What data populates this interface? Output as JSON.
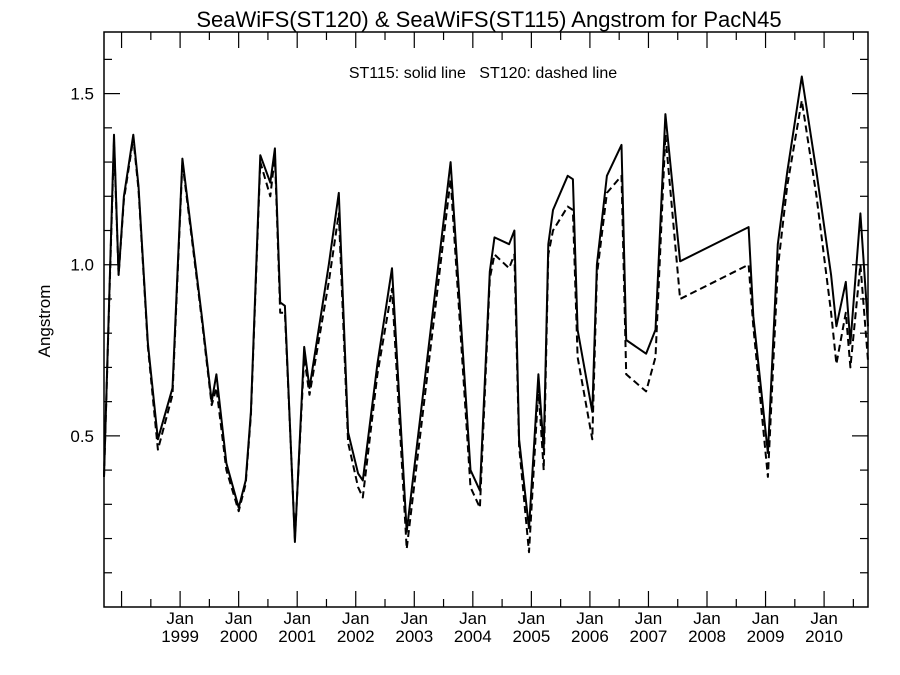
{
  "chart_data": {
    "type": "line",
    "title": "SeaWiFS(ST120) & SeaWiFS(ST115)  Angstrom for PacN45",
    "ylabel": "Angstrom",
    "xlabel": "",
    "annotation": "ST115: solid line   ST120: dashed line",
    "x_unit": "decimal year",
    "xlim": [
      1997.7,
      2010.75
    ],
    "ylim": [
      0.0,
      1.68
    ],
    "yticks": [
      0.5,
      1.0,
      1.5
    ],
    "x_tick_labels": [
      {
        "month": "Jan",
        "year": "1999",
        "x": 1999.0
      },
      {
        "month": "Jan",
        "year": "2000",
        "x": 2000.0
      },
      {
        "month": "Jan",
        "year": "2001",
        "x": 2001.0
      },
      {
        "month": "Jan",
        "year": "2002",
        "x": 2002.0
      },
      {
        "month": "Jan",
        "year": "2003",
        "x": 2003.0
      },
      {
        "month": "Jan",
        "year": "2004",
        "x": 2004.0
      },
      {
        "month": "Jan",
        "year": "2005",
        "x": 2005.0
      },
      {
        "month": "Jan",
        "year": "2006",
        "x": 2006.0
      },
      {
        "month": "Jan",
        "year": "2007",
        "x": 2007.0
      },
      {
        "month": "Jan",
        "year": "2008",
        "x": 2008.0
      },
      {
        "month": "Jan",
        "year": "2009",
        "x": 2009.0
      },
      {
        "month": "Jan",
        "year": "2010",
        "x": 2010.0
      }
    ],
    "series": [
      {
        "name": "ST115",
        "style": "solid",
        "color": "#000000",
        "points": [
          [
            1997.7,
            0.38
          ],
          [
            1997.87,
            1.38
          ],
          [
            1997.95,
            0.97
          ],
          [
            1998.04,
            1.2
          ],
          [
            1998.2,
            1.38
          ],
          [
            1998.29,
            1.23
          ],
          [
            1998.45,
            0.77
          ],
          [
            1998.62,
            0.49
          ],
          [
            1998.87,
            0.64
          ],
          [
            1999.04,
            1.31
          ],
          [
            1999.37,
            0.85
          ],
          [
            1999.54,
            0.6
          ],
          [
            1999.62,
            0.68
          ],
          [
            1999.79,
            0.42
          ],
          [
            2000.0,
            0.29
          ],
          [
            2000.12,
            0.37
          ],
          [
            2000.21,
            0.57
          ],
          [
            2000.37,
            1.32
          ],
          [
            2000.54,
            1.24
          ],
          [
            2000.62,
            1.34
          ],
          [
            2000.71,
            0.89
          ],
          [
            2000.79,
            0.88
          ],
          [
            2000.96,
            0.19
          ],
          [
            2001.12,
            0.76
          ],
          [
            2001.21,
            0.64
          ],
          [
            2001.54,
            1.0
          ],
          [
            2001.71,
            1.21
          ],
          [
            2001.87,
            0.51
          ],
          [
            2002.04,
            0.39
          ],
          [
            2002.12,
            0.37
          ],
          [
            2002.37,
            0.71
          ],
          [
            2002.62,
            0.99
          ],
          [
            2002.87,
            0.22
          ],
          [
            2003.62,
            1.3
          ],
          [
            2003.96,
            0.4
          ],
          [
            2004.12,
            0.34
          ],
          [
            2004.29,
            0.98
          ],
          [
            2004.37,
            1.08
          ],
          [
            2004.62,
            1.06
          ],
          [
            2004.71,
            1.1
          ],
          [
            2004.79,
            0.49
          ],
          [
            2004.96,
            0.23
          ],
          [
            2005.12,
            0.68
          ],
          [
            2005.21,
            0.46
          ],
          [
            2005.29,
            1.06
          ],
          [
            2005.37,
            1.16
          ],
          [
            2005.62,
            1.26
          ],
          [
            2005.71,
            1.25
          ],
          [
            2005.79,
            0.81
          ],
          [
            2006.04,
            0.57
          ],
          [
            2006.12,
            1.0
          ],
          [
            2006.29,
            1.26
          ],
          [
            2006.54,
            1.35
          ],
          [
            2006.62,
            0.78
          ],
          [
            2006.96,
            0.74
          ],
          [
            2007.12,
            0.81
          ],
          [
            2007.29,
            1.44
          ],
          [
            2007.54,
            1.01
          ],
          [
            2008.71,
            1.11
          ],
          [
            2008.79,
            0.85
          ],
          [
            2009.04,
            0.45
          ],
          [
            2009.21,
            1.06
          ],
          [
            2009.37,
            1.27
          ],
          [
            2009.62,
            1.55
          ],
          [
            2009.87,
            1.27
          ],
          [
            2010.12,
            0.97
          ],
          [
            2010.21,
            0.82
          ],
          [
            2010.37,
            0.95
          ],
          [
            2010.45,
            0.77
          ],
          [
            2010.62,
            1.15
          ],
          [
            2010.75,
            0.82
          ]
        ]
      },
      {
        "name": "ST120",
        "style": "dashed",
        "color": "#000000",
        "points": [
          [
            1997.7,
            0.38
          ],
          [
            1997.87,
            1.36
          ],
          [
            1997.95,
            0.97
          ],
          [
            1998.04,
            1.19
          ],
          [
            1998.2,
            1.37
          ],
          [
            1998.29,
            1.22
          ],
          [
            1998.45,
            0.76
          ],
          [
            1998.62,
            0.46
          ],
          [
            1998.87,
            0.62
          ],
          [
            1999.04,
            1.3
          ],
          [
            1999.37,
            0.84
          ],
          [
            1999.54,
            0.59
          ],
          [
            1999.62,
            0.64
          ],
          [
            1999.79,
            0.4
          ],
          [
            2000.0,
            0.28
          ],
          [
            2000.12,
            0.36
          ],
          [
            2000.21,
            0.56
          ],
          [
            2000.37,
            1.3
          ],
          [
            2000.54,
            1.2
          ],
          [
            2000.62,
            1.32
          ],
          [
            2000.71,
            0.86
          ],
          [
            2000.79,
            0.86
          ],
          [
            2000.96,
            0.2
          ],
          [
            2001.12,
            0.73
          ],
          [
            2001.21,
            0.62
          ],
          [
            2001.54,
            0.95
          ],
          [
            2001.71,
            1.15
          ],
          [
            2001.87,
            0.48
          ],
          [
            2002.04,
            0.35
          ],
          [
            2002.12,
            0.32
          ],
          [
            2002.37,
            0.68
          ],
          [
            2002.62,
            0.93
          ],
          [
            2002.87,
            0.17
          ],
          [
            2003.62,
            1.25
          ],
          [
            2003.96,
            0.35
          ],
          [
            2004.12,
            0.29
          ],
          [
            2004.29,
            0.96
          ],
          [
            2004.37,
            1.03
          ],
          [
            2004.62,
            0.99
          ],
          [
            2004.71,
            1.03
          ],
          [
            2004.79,
            0.47
          ],
          [
            2004.96,
            0.16
          ],
          [
            2005.12,
            0.64
          ],
          [
            2005.21,
            0.4
          ],
          [
            2005.29,
            1.03
          ],
          [
            2005.37,
            1.1
          ],
          [
            2005.62,
            1.17
          ],
          [
            2005.71,
            1.16
          ],
          [
            2005.79,
            0.73
          ],
          [
            2006.04,
            0.49
          ],
          [
            2006.12,
            0.97
          ],
          [
            2006.29,
            1.21
          ],
          [
            2006.54,
            1.26
          ],
          [
            2006.62,
            0.68
          ],
          [
            2006.96,
            0.63
          ],
          [
            2007.12,
            0.73
          ],
          [
            2007.29,
            1.38
          ],
          [
            2007.54,
            0.9
          ],
          [
            2008.71,
            1.0
          ],
          [
            2008.79,
            0.82
          ],
          [
            2009.04,
            0.38
          ],
          [
            2009.21,
            0.99
          ],
          [
            2009.37,
            1.23
          ],
          [
            2009.62,
            1.48
          ],
          [
            2009.87,
            1.2
          ],
          [
            2010.12,
            0.86
          ],
          [
            2010.21,
            0.71
          ],
          [
            2010.37,
            0.86
          ],
          [
            2010.45,
            0.7
          ],
          [
            2010.62,
            1.0
          ],
          [
            2010.75,
            0.72
          ]
        ]
      }
    ]
  }
}
